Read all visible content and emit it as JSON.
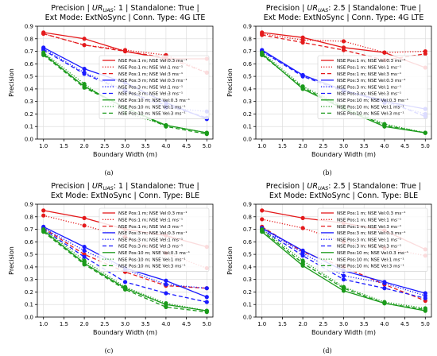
{
  "chart_data": [
    {
      "type": "line",
      "title_line1": "Precision | UR_UAS: 1 | Standalone: True |",
      "title_line2": "Ext Mode: ExtNoSync | Conn. Type: 4G LTE",
      "xlabel": "Boundary Width (m)",
      "ylabel": "Precision",
      "x": [
        1.0,
        2.0,
        3.0,
        4.0,
        5.0
      ],
      "xticks": [
        "1.0",
        "1.5",
        "2.0",
        "2.5",
        "3.0",
        "3.5",
        "4.0",
        "4.5",
        "5.0"
      ],
      "yticks": [
        "0.0",
        "0.1",
        "0.2",
        "0.3",
        "0.4",
        "0.5",
        "0.6",
        "0.7",
        "0.8",
        "0.9"
      ],
      "xlim": [
        0.85,
        5.15
      ],
      "ylim": [
        0,
        0.9
      ],
      "grid": true,
      "legend_position": "right",
      "caption": "(a)",
      "series": [
        {
          "name": "NSE Pos:1 m; NSE Vel:0.3 ms⁻¹",
          "color": "#e41a1c",
          "dash": "solid",
          "values": [
            0.85,
            0.8,
            0.7,
            0.64,
            0.64
          ]
        },
        {
          "name": "NSE Pos:1 m; NSE Vel:1 ms⁻¹",
          "color": "#e41a1c",
          "dash": "dotted",
          "values": [
            0.84,
            0.75,
            0.71,
            0.67,
            0.53
          ]
        },
        {
          "name": "NSE Pos:1 m; NSE Vel:3 ms⁻¹",
          "color": "#e41a1c",
          "dash": "dashed",
          "values": [
            0.84,
            0.75,
            0.7,
            0.65,
            0.53
          ]
        },
        {
          "name": "NSE Pos:3 m; NSE Vel:0.3 ms⁻¹",
          "color": "#1a1aff",
          "dash": "solid",
          "values": [
            0.73,
            0.56,
            0.45,
            0.29,
            0.16
          ]
        },
        {
          "name": "NSE Pos:3 m; NSE Vel:1 ms⁻¹",
          "color": "#1a1aff",
          "dash": "dotted",
          "values": [
            0.72,
            0.53,
            0.39,
            0.25,
            0.22
          ]
        },
        {
          "name": "NSE Pos:3 m; NSE Vel:3 ms⁻¹",
          "color": "#1a1aff",
          "dash": "dashed",
          "values": [
            0.71,
            0.52,
            0.38,
            0.27,
            0.17
          ]
        },
        {
          "name": "NSE Pos:10 m; NSE Vel:0.3 ms⁻¹",
          "color": "#1a9a1a",
          "dash": "solid",
          "values": [
            0.68,
            0.42,
            0.25,
            0.11,
            0.05
          ]
        },
        {
          "name": "NSE Pos:10 m; NSE Vel:1 ms⁻¹",
          "color": "#1a9a1a",
          "dash": "dotted",
          "values": [
            0.69,
            0.44,
            0.21,
            0.11,
            0.05
          ]
        },
        {
          "name": "NSE Pos:10 m; NSE Vel:3 ms⁻¹",
          "color": "#1a9a1a",
          "dash": "dashed",
          "values": [
            0.67,
            0.41,
            0.25,
            0.1,
            0.04
          ]
        }
      ]
    },
    {
      "type": "line",
      "title_line1": "Precision | UR_UAS: 2.5 | Standalone: True |",
      "title_line2": "Ext Mode: ExtNoSync | Conn. Type: 4G LTE",
      "xlabel": "Boundary Width (m)",
      "ylabel": "Precision",
      "x": [
        1.0,
        2.0,
        3.0,
        4.0,
        5.0
      ],
      "xticks": [
        "1.0",
        "1.5",
        "2.0",
        "2.5",
        "3.0",
        "3.5",
        "4.0",
        "4.5",
        "5.0"
      ],
      "yticks": [
        "0.0",
        "0.1",
        "0.2",
        "0.3",
        "0.4",
        "0.5",
        "0.6",
        "0.7",
        "0.8",
        "0.9"
      ],
      "xlim": [
        0.85,
        5.15
      ],
      "ylim": [
        0,
        0.9
      ],
      "grid": true,
      "legend_position": "right",
      "caption": "(b)",
      "series": [
        {
          "name": "NSE Pos:1 m; NSE Vel:0.3 ms⁻¹",
          "color": "#e41a1c",
          "dash": "solid",
          "values": [
            0.85,
            0.81,
            0.73,
            0.69,
            0.57
          ]
        },
        {
          "name": "NSE Pos:1 m; NSE Vel:1 ms⁻¹",
          "color": "#e41a1c",
          "dash": "dotted",
          "values": [
            0.84,
            0.79,
            0.78,
            0.69,
            0.7
          ]
        },
        {
          "name": "NSE Pos:1 m; NSE Vel:3 ms⁻¹",
          "color": "#e41a1c",
          "dash": "dashed",
          "values": [
            0.83,
            0.77,
            0.71,
            0.63,
            0.68
          ]
        },
        {
          "name": "NSE Pos:3 m; NSE Vel:0.3 ms⁻¹",
          "color": "#1a1aff",
          "dash": "solid",
          "values": [
            0.71,
            0.51,
            0.39,
            0.3,
            0.24
          ]
        },
        {
          "name": "NSE Pos:3 m; NSE Vel:1 ms⁻¹",
          "color": "#1a1aff",
          "dash": "dotted",
          "values": [
            0.7,
            0.51,
            0.39,
            0.29,
            0.2
          ]
        },
        {
          "name": "NSE Pos:3 m; NSE Vel:3 ms⁻¹",
          "color": "#1a1aff",
          "dash": "dashed",
          "values": [
            0.7,
            0.5,
            0.38,
            0.31,
            0.18
          ]
        },
        {
          "name": "NSE Pos:10 m; NSE Vel:0.3 ms⁻¹",
          "color": "#1a9a1a",
          "dash": "solid",
          "values": [
            0.68,
            0.4,
            0.24,
            0.1,
            0.05
          ]
        },
        {
          "name": "NSE Pos:10 m; NSE Vel:1 ms⁻¹",
          "color": "#1a9a1a",
          "dash": "dotted",
          "values": [
            0.69,
            0.42,
            0.26,
            0.12,
            0.05
          ]
        },
        {
          "name": "NSE Pos:10 m; NSE Vel:3 ms⁻¹",
          "color": "#1a9a1a",
          "dash": "dashed",
          "values": [
            0.67,
            0.41,
            0.25,
            0.11,
            0.05
          ]
        }
      ]
    },
    {
      "type": "line",
      "title_line1": "Precision | UR_UAS: 1 | Standalone: True |",
      "title_line2": "Ext Mode: ExtNoSync | Conn. Type: BLE",
      "xlabel": "Boundary Width (m)",
      "ylabel": "Precision",
      "x": [
        1.0,
        2.0,
        3.0,
        4.0,
        5.0
      ],
      "xticks": [
        "1.0",
        "1.5",
        "2.0",
        "2.5",
        "3.0",
        "3.5",
        "4.0",
        "4.5",
        "5.0"
      ],
      "yticks": [
        "0.0",
        "0.1",
        "0.2",
        "0.3",
        "0.4",
        "0.5",
        "0.6",
        "0.7",
        "0.8",
        "0.9"
      ],
      "xlim": [
        0.85,
        5.15
      ],
      "ylim": [
        0,
        0.9
      ],
      "grid": true,
      "legend_position": "upper right",
      "caption": "(c)",
      "series": [
        {
          "name": "NSE Pos:1 m; NSE Vel:0.3 ms⁻¹",
          "color": "#e41a1c",
          "dash": "solid",
          "values": [
            0.85,
            0.79,
            0.7,
            0.65,
            0.56
          ]
        },
        {
          "name": "NSE Pos:1 m; NSE Vel:1 ms⁻¹",
          "color": "#e41a1c",
          "dash": "dotted",
          "values": [
            0.81,
            0.73,
            0.64,
            0.51,
            0.39
          ]
        },
        {
          "name": "NSE Pos:1 m; NSE Vel:3 ms⁻¹",
          "color": "#e41a1c",
          "dash": "dashed",
          "values": [
            0.71,
            0.5,
            0.36,
            0.25,
            0.23
          ]
        },
        {
          "name": "NSE Pos:3 m; NSE Vel:0.3 ms⁻¹",
          "color": "#1a1aff",
          "dash": "solid",
          "values": [
            0.72,
            0.56,
            0.39,
            0.29,
            0.16
          ]
        },
        {
          "name": "NSE Pos:3 m; NSE Vel:1 ms⁻¹",
          "color": "#1a1aff",
          "dash": "dotted",
          "values": [
            0.71,
            0.53,
            0.38,
            0.26,
            0.23
          ]
        },
        {
          "name": "NSE Pos:3 m; NSE Vel:3 ms⁻¹",
          "color": "#1a1aff",
          "dash": "dashed",
          "values": [
            0.7,
            0.48,
            0.28,
            0.19,
            0.12
          ]
        },
        {
          "name": "NSE Pos:10 m; NSE Vel:0.3 ms⁻¹",
          "color": "#1a9a1a",
          "dash": "solid",
          "values": [
            0.69,
            0.43,
            0.23,
            0.1,
            0.05
          ]
        },
        {
          "name": "NSE Pos:10 m; NSE Vel:1 ms⁻¹",
          "color": "#1a9a1a",
          "dash": "dotted",
          "values": [
            0.7,
            0.45,
            0.24,
            0.11,
            0.05
          ]
        },
        {
          "name": "NSE Pos:10 m; NSE Vel:3 ms⁻¹",
          "color": "#1a9a1a",
          "dash": "dashed",
          "values": [
            0.68,
            0.42,
            0.22,
            0.08,
            0.04
          ]
        }
      ]
    },
    {
      "type": "line",
      "title_line1": "Precision | UR_UAS: 2.5 | Standalone: True |",
      "title_line2": "Ext Mode: ExtNoSync | Conn. Type: BLE",
      "xlabel": "Boundary Width (m)",
      "ylabel": "Precision",
      "x": [
        1.0,
        2.0,
        3.0,
        4.0,
        5.0
      ],
      "xticks": [
        "1.0",
        "1.5",
        "2.0",
        "2.5",
        "3.0",
        "3.5",
        "4.0",
        "4.5",
        "5.0"
      ],
      "yticks": [
        "0.0",
        "0.1",
        "0.2",
        "0.3",
        "0.4",
        "0.5",
        "0.6",
        "0.7",
        "0.8",
        "0.9"
      ],
      "xlim": [
        0.85,
        5.15
      ],
      "ylim": [
        0,
        0.9
      ],
      "grid": true,
      "legend_position": "upper right",
      "caption": "(d)",
      "series": [
        {
          "name": "NSE Pos:1 m; NSE Vel:0.3 ms⁻¹",
          "color": "#e41a1c",
          "dash": "solid",
          "values": [
            0.85,
            0.79,
            0.75,
            0.69,
            0.54
          ]
        },
        {
          "name": "NSE Pos:1 m; NSE Vel:1 ms⁻¹",
          "color": "#e41a1c",
          "dash": "dotted",
          "values": [
            0.78,
            0.71,
            0.6,
            0.55,
            0.49
          ]
        },
        {
          "name": "NSE Pos:1 m; NSE Vel:3 ms⁻¹",
          "color": "#e41a1c",
          "dash": "dashed",
          "values": [
            0.72,
            0.52,
            0.4,
            0.26,
            0.13
          ]
        },
        {
          "name": "NSE Pos:3 m; NSE Vel:0.3 ms⁻¹",
          "color": "#1a1aff",
          "dash": "solid",
          "values": [
            0.71,
            0.53,
            0.37,
            0.28,
            0.19
          ]
        },
        {
          "name": "NSE Pos:3 m; NSE Vel:1 ms⁻¹",
          "color": "#1a1aff",
          "dash": "dotted",
          "values": [
            0.71,
            0.51,
            0.33,
            0.27,
            0.17
          ]
        },
        {
          "name": "NSE Pos:3 m; NSE Vel:3 ms⁻¹",
          "color": "#1a1aff",
          "dash": "dashed",
          "values": [
            0.7,
            0.49,
            0.3,
            0.23,
            0.15
          ]
        },
        {
          "name": "NSE Pos:10 m; NSE Vel:0.3 ms⁻¹",
          "color": "#1a9a1a",
          "dash": "solid",
          "values": [
            0.68,
            0.41,
            0.21,
            0.11,
            0.05
          ]
        },
        {
          "name": "NSE Pos:10 m; NSE Vel:1 ms⁻¹",
          "color": "#1a9a1a",
          "dash": "dotted",
          "values": [
            0.7,
            0.45,
            0.24,
            0.12,
            0.07
          ]
        },
        {
          "name": "NSE Pos:10 m; NSE Vel:3 ms⁻¹",
          "color": "#1a9a1a",
          "dash": "dashed",
          "values": [
            0.69,
            0.43,
            0.23,
            0.11,
            0.06
          ]
        }
      ]
    }
  ]
}
